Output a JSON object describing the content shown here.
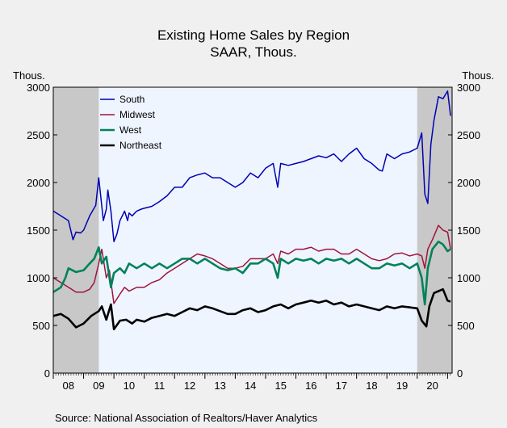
{
  "chart_data": {
    "type": "line",
    "title": "Existing Home Sales by Region",
    "subtitle": "SAAR, Thous.",
    "ylabel_left": "Thous.",
    "ylabel_right": "Thous.",
    "ylim": [
      0,
      3000
    ],
    "xlim": [
      2008.0,
      2021.15
    ],
    "yticks": [
      0,
      500,
      1000,
      1500,
      2000,
      2500,
      3000
    ],
    "xtick_labels": [
      "08",
      "09",
      "10",
      "11",
      "12",
      "13",
      "14",
      "15",
      "16",
      "17",
      "18",
      "19",
      "20"
    ],
    "recessions": [
      [
        2008.0,
        2009.5
      ],
      [
        2020.0,
        2021.15
      ]
    ],
    "grid": false,
    "legend_position": "top-left",
    "source": "Source:  National Association of Realtors/Haver Analytics",
    "series": [
      {
        "name": "South",
        "color": "#0000b4",
        "x": [
          2008.0,
          2008.25,
          2008.5,
          2008.65,
          2008.75,
          2008.9,
          2009.0,
          2009.2,
          2009.4,
          2009.5,
          2009.65,
          2009.75,
          2009.8,
          2009.9,
          2010.0,
          2010.1,
          2010.2,
          2010.35,
          2010.45,
          2010.5,
          2010.6,
          2010.75,
          2010.9,
          2011.0,
          2011.25,
          2011.5,
          2011.75,
          2012.0,
          2012.25,
          2012.5,
          2012.75,
          2013.0,
          2013.25,
          2013.5,
          2013.75,
          2014.0,
          2014.25,
          2014.5,
          2014.75,
          2015.0,
          2015.25,
          2015.4,
          2015.5,
          2015.75,
          2016.0,
          2016.25,
          2016.5,
          2016.75,
          2017.0,
          2017.25,
          2017.5,
          2017.75,
          2018.0,
          2018.25,
          2018.5,
          2018.75,
          2018.85,
          2019.0,
          2019.25,
          2019.5,
          2019.75,
          2020.0,
          2020.15,
          2020.25,
          2020.35,
          2020.45,
          2020.55,
          2020.7,
          2020.85,
          2021.0,
          2021.1
        ],
        "y": [
          1700,
          1650,
          1600,
          1400,
          1480,
          1470,
          1500,
          1650,
          1760,
          2050,
          1600,
          1720,
          1920,
          1700,
          1380,
          1460,
          1600,
          1700,
          1600,
          1680,
          1650,
          1700,
          1720,
          1730,
          1750,
          1800,
          1860,
          1950,
          1950,
          2050,
          2080,
          2100,
          2050,
          2050,
          2000,
          1950,
          2000,
          2100,
          2050,
          2150,
          2200,
          1950,
          2200,
          2180,
          2200,
          2220,
          2250,
          2280,
          2260,
          2300,
          2220,
          2300,
          2360,
          2250,
          2200,
          2130,
          2120,
          2300,
          2250,
          2300,
          2320,
          2360,
          2520,
          1880,
          1780,
          2400,
          2650,
          2900,
          2880,
          2960,
          2700
        ]
      },
      {
        "name": "Midwest",
        "color": "#a0143c",
        "x": [
          2008.0,
          2008.25,
          2008.5,
          2008.75,
          2009.0,
          2009.2,
          2009.35,
          2009.5,
          2009.6,
          2009.75,
          2009.85,
          2010.0,
          2010.2,
          2010.35,
          2010.5,
          2010.75,
          2011.0,
          2011.25,
          2011.5,
          2011.75,
          2012.0,
          2012.25,
          2012.5,
          2012.75,
          2013.0,
          2013.25,
          2013.5,
          2013.75,
          2014.0,
          2014.25,
          2014.5,
          2014.75,
          2015.0,
          2015.25,
          2015.4,
          2015.5,
          2015.75,
          2016.0,
          2016.25,
          2016.5,
          2016.75,
          2017.0,
          2017.25,
          2017.5,
          2017.75,
          2018.0,
          2018.25,
          2018.5,
          2018.75,
          2019.0,
          2019.25,
          2019.5,
          2019.75,
          2020.0,
          2020.15,
          2020.25,
          2020.35,
          2020.5,
          2020.7,
          2020.85,
          2021.0,
          2021.1
        ],
        "y": [
          1000,
          950,
          900,
          850,
          850,
          880,
          950,
          1150,
          1300,
          1000,
          1080,
          730,
          830,
          900,
          860,
          900,
          900,
          950,
          980,
          1050,
          1100,
          1150,
          1200,
          1250,
          1230,
          1200,
          1150,
          1100,
          1100,
          1120,
          1200,
          1200,
          1200,
          1250,
          1150,
          1280,
          1250,
          1300,
          1300,
          1320,
          1280,
          1300,
          1300,
          1250,
          1250,
          1300,
          1250,
          1200,
          1180,
          1200,
          1250,
          1260,
          1230,
          1250,
          1230,
          1100,
          1300,
          1400,
          1550,
          1500,
          1480,
          1300
        ]
      },
      {
        "name": "West",
        "color": "#00825a",
        "x": [
          2008.0,
          2008.25,
          2008.4,
          2008.5,
          2008.75,
          2009.0,
          2009.2,
          2009.35,
          2009.5,
          2009.6,
          2009.75,
          2009.9,
          2010.0,
          2010.2,
          2010.35,
          2010.5,
          2010.75,
          2011.0,
          2011.25,
          2011.5,
          2011.75,
          2012.0,
          2012.25,
          2012.5,
          2012.75,
          2013.0,
          2013.25,
          2013.5,
          2013.75,
          2014.0,
          2014.25,
          2014.5,
          2014.75,
          2015.0,
          2015.25,
          2015.4,
          2015.5,
          2015.75,
          2016.0,
          2016.25,
          2016.5,
          2016.75,
          2017.0,
          2017.25,
          2017.5,
          2017.75,
          2018.0,
          2018.25,
          2018.5,
          2018.75,
          2019.0,
          2019.25,
          2019.5,
          2019.75,
          2020.0,
          2020.15,
          2020.25,
          2020.35,
          2020.5,
          2020.7,
          2020.85,
          2021.0,
          2021.1
        ],
        "y": [
          850,
          900,
          1000,
          1100,
          1060,
          1080,
          1150,
          1200,
          1320,
          1150,
          1220,
          900,
          1050,
          1100,
          1050,
          1150,
          1100,
          1150,
          1100,
          1150,
          1100,
          1150,
          1200,
          1200,
          1150,
          1200,
          1150,
          1100,
          1080,
          1100,
          1050,
          1150,
          1150,
          1200,
          1150,
          1000,
          1200,
          1150,
          1200,
          1180,
          1200,
          1150,
          1200,
          1180,
          1200,
          1150,
          1200,
          1150,
          1100,
          1100,
          1150,
          1130,
          1150,
          1100,
          1150,
          1000,
          720,
          1100,
          1300,
          1380,
          1350,
          1280,
          1300
        ]
      },
      {
        "name": "Northeast",
        "color": "#000000",
        "x": [
          2008.0,
          2008.25,
          2008.5,
          2008.75,
          2009.0,
          2009.25,
          2009.5,
          2009.6,
          2009.75,
          2009.9,
          2010.0,
          2010.2,
          2010.4,
          2010.6,
          2010.75,
          2011.0,
          2011.25,
          2011.5,
          2011.75,
          2012.0,
          2012.25,
          2012.5,
          2012.75,
          2013.0,
          2013.25,
          2013.5,
          2013.75,
          2014.0,
          2014.25,
          2014.5,
          2014.75,
          2015.0,
          2015.25,
          2015.5,
          2015.75,
          2016.0,
          2016.25,
          2016.5,
          2016.75,
          2017.0,
          2017.25,
          2017.5,
          2017.75,
          2018.0,
          2018.25,
          2018.5,
          2018.75,
          2019.0,
          2019.25,
          2019.5,
          2019.75,
          2020.0,
          2020.15,
          2020.3,
          2020.4,
          2020.55,
          2020.7,
          2020.85,
          2021.0,
          2021.1
        ],
        "y": [
          600,
          620,
          570,
          480,
          520,
          600,
          650,
          700,
          560,
          720,
          460,
          550,
          560,
          520,
          560,
          540,
          580,
          600,
          620,
          600,
          640,
          680,
          660,
          700,
          680,
          650,
          620,
          620,
          660,
          680,
          640,
          660,
          700,
          720,
          680,
          720,
          740,
          760,
          740,
          760,
          720,
          740,
          700,
          720,
          700,
          680,
          660,
          700,
          680,
          700,
          690,
          680,
          550,
          490,
          700,
          840,
          860,
          880,
          760,
          750
        ]
      }
    ]
  }
}
